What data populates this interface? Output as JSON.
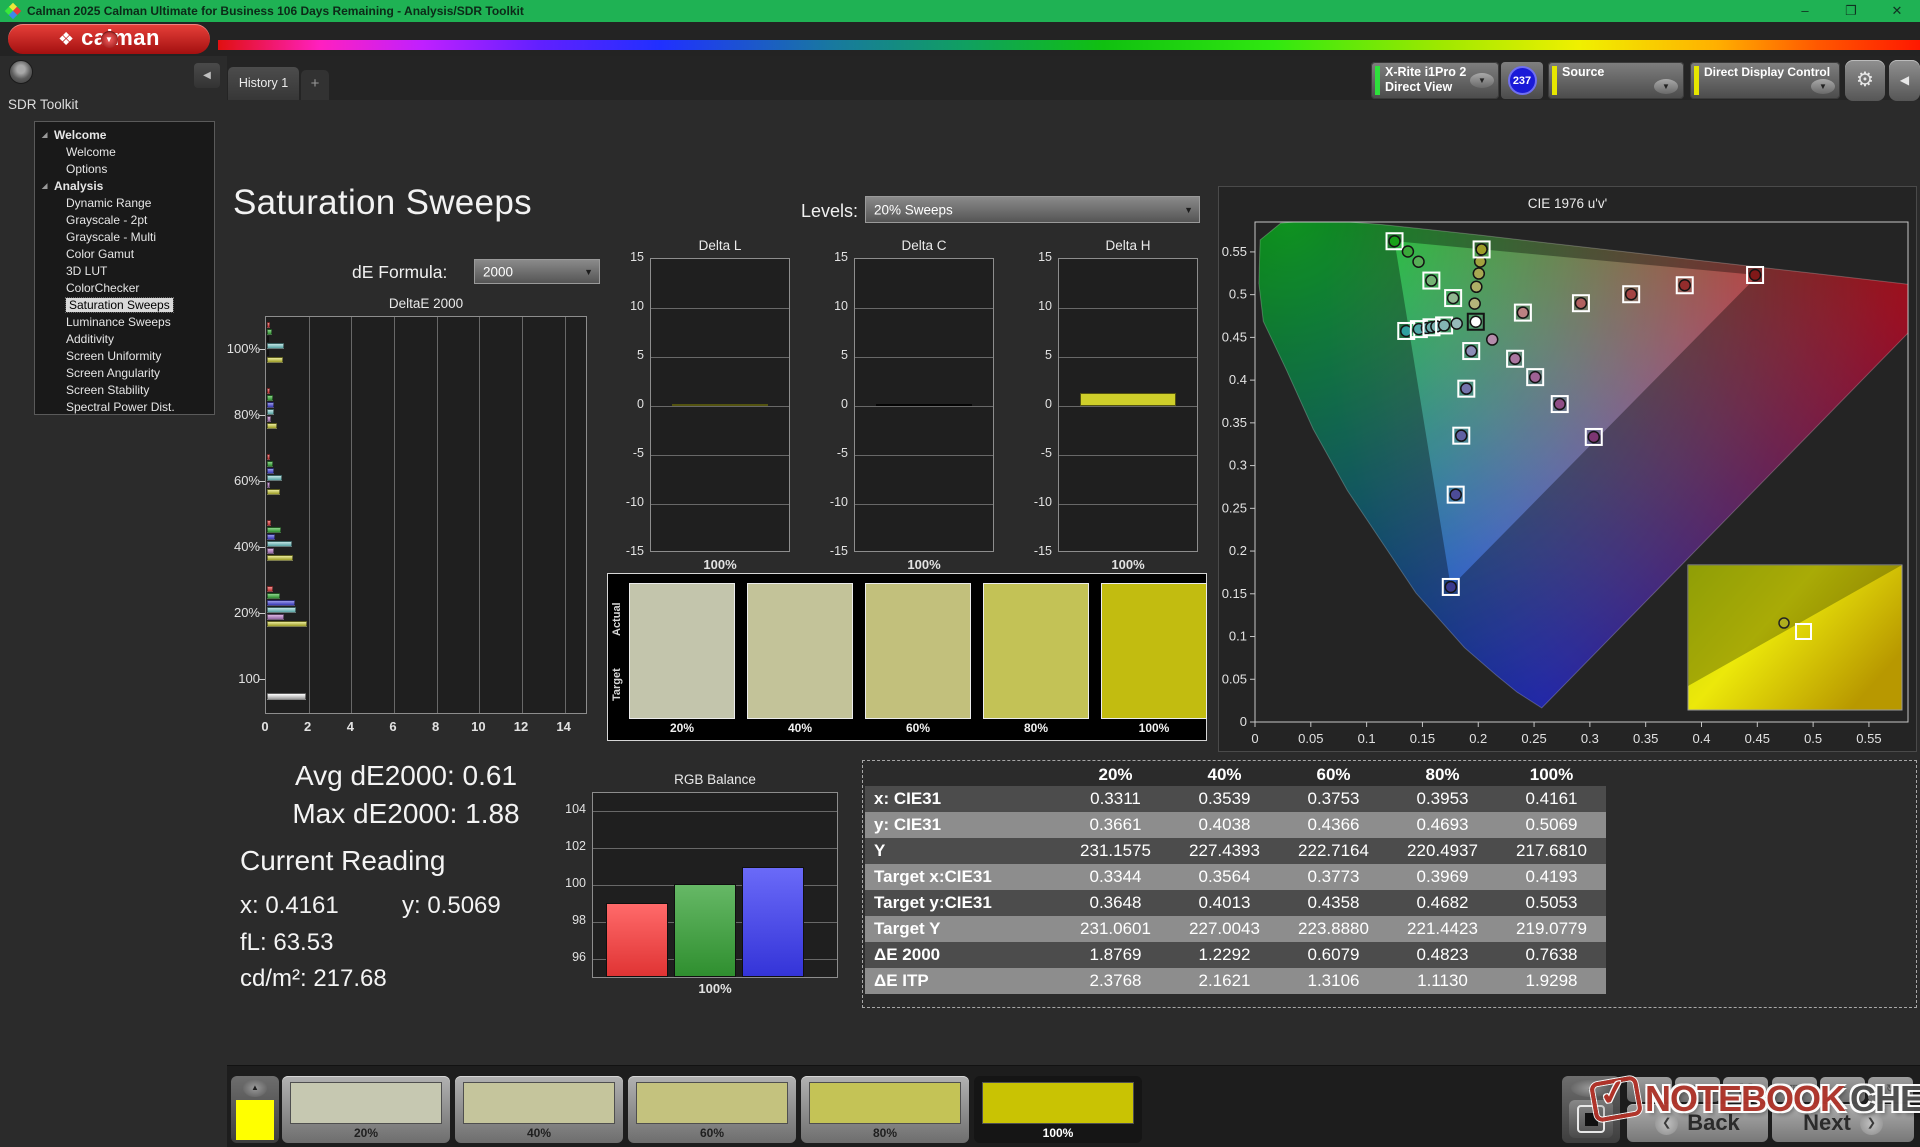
{
  "window": {
    "title": "Calman 2025 Calman Ultimate for Business 106 Days Remaining  - Analysis/SDR Toolkit",
    "minimize": "–",
    "restore": "❐",
    "close": "✕"
  },
  "brand": {
    "glyph": "❖",
    "name": "calman",
    "chev": "▼"
  },
  "tabs": {
    "history": "History 1",
    "add": "+"
  },
  "toolbar": {
    "meter_line1": "X-Rite i1Pro 2",
    "meter_line2": "Direct View",
    "badge": "237",
    "source": "Source",
    "display_control": "Direct Display Control",
    "gear_icon": "⚙",
    "collapse_icon": "◀",
    "chev": "▼"
  },
  "sidebar": {
    "header": "SDR Toolkit",
    "expander": "◢",
    "collapse_icon": "◀",
    "items": [
      {
        "label": "Welcome",
        "type": "hdr"
      },
      {
        "label": "Welcome",
        "type": "itm"
      },
      {
        "label": "Options",
        "type": "itm"
      },
      {
        "label": "Analysis",
        "type": "hdr"
      },
      {
        "label": "Dynamic Range",
        "type": "itm"
      },
      {
        "label": "Grayscale - 2pt",
        "type": "itm"
      },
      {
        "label": "Grayscale - Multi",
        "type": "itm"
      },
      {
        "label": "Color Gamut",
        "type": "itm"
      },
      {
        "label": "3D LUT",
        "type": "itm"
      },
      {
        "label": "ColorChecker",
        "type": "itm"
      },
      {
        "label": "Saturation Sweeps",
        "type": "itm",
        "selected": true
      },
      {
        "label": "Luminance Sweeps",
        "type": "itm"
      },
      {
        "label": "Additivity",
        "type": "itm"
      },
      {
        "label": "Screen Uniformity",
        "type": "itm"
      },
      {
        "label": "Screen Angularity",
        "type": "itm"
      },
      {
        "label": "Screen Stability",
        "type": "itm"
      },
      {
        "label": "Spectral Power Dist.",
        "type": "itm"
      }
    ]
  },
  "page": {
    "title": "Saturation Sweeps",
    "levels_label": "Levels:",
    "levels_value": "20% Sweeps",
    "de_formula_label": "dE Formula:",
    "de_formula_value": "2000",
    "avg": "Avg dE2000: 0.61",
    "max": "Max dE2000: 1.88",
    "current_reading": "Current Reading",
    "x": "x: 0.4161",
    "y": "y: 0.5069",
    "fl": "fL: 63.53",
    "cdm2": "cd/m²: 217.68"
  },
  "chart_data": {
    "deltae": {
      "type": "bar",
      "title": "DeltaE 2000",
      "orientation": "horizontal",
      "xlim": [
        0,
        15
      ],
      "x_ticks": [
        "0",
        "2",
        "4",
        "6",
        "8",
        "10",
        "12",
        "14"
      ],
      "groups": [
        "100%",
        "80%",
        "60%",
        "40%",
        "20%",
        "100"
      ],
      "series": [
        "red",
        "green",
        "blue",
        "cyan",
        "magenta",
        "yellow"
      ],
      "values": [
        [
          0.15,
          0.22,
          0.08,
          0.8,
          0.08,
          0.7638
        ],
        [
          0.12,
          0.28,
          0.33,
          0.33,
          0.2,
          0.4823
        ],
        [
          0.15,
          0.28,
          0.33,
          0.7,
          0.15,
          0.6079
        ],
        [
          0.2,
          0.65,
          0.38,
          1.15,
          0.33,
          1.2292
        ],
        [
          0.3,
          0.6,
          1.3,
          1.35,
          0.78,
          1.8769
        ]
      ],
      "white_value": 1.85
    },
    "lch": {
      "type": "bar",
      "titles": [
        "Delta L",
        "Delta C",
        "Delta H"
      ],
      "ylim": [
        -15,
        15
      ],
      "y_ticks": [
        "15",
        "10",
        "5",
        "0",
        "-5",
        "-10",
        "-15"
      ],
      "x_label": "100%",
      "values": [
        0.12,
        0.05,
        1.3
      ],
      "colors": [
        "#cfcf2a",
        "#0a0a0a",
        "#cfcf2a"
      ]
    },
    "rgb": {
      "type": "bar",
      "title": "RGB Balance",
      "ylim": [
        95,
        105
      ],
      "y_ticks": [
        "104",
        "102",
        "100",
        "98",
        "96"
      ],
      "x_label": "100%",
      "categories": [
        "red",
        "green",
        "blue"
      ],
      "values": [
        99.0,
        100.05,
        101.0
      ]
    },
    "cie": {
      "type": "scatter",
      "title": "CIE 1976 u'v'",
      "lim": 0.585,
      "ticks": [
        "0",
        "0.05",
        "0.1",
        "0.15",
        "0.2",
        "0.25",
        "0.3",
        "0.35",
        "0.4",
        "0.45",
        "0.5",
        "0.55"
      ],
      "markers": [
        [
          0.1355,
          0.4575,
          "t",
          "#2f9f9f"
        ],
        [
          0.1468,
          0.4597,
          "t",
          "#4fa8a8"
        ],
        [
          0.154,
          0.461,
          "m",
          "#60acac"
        ],
        [
          0.1581,
          0.4618,
          "t",
          "#6eaeae"
        ],
        [
          0.1625,
          0.4627,
          "m",
          "#78b0b0"
        ],
        [
          0.1694,
          0.464,
          "t",
          "#84b4b4"
        ],
        [
          0.1807,
          0.4661,
          "m",
          "#96baba"
        ],
        [
          0.125,
          0.5625,
          "t",
          "#18a018"
        ],
        [
          0.137,
          0.5505,
          "m",
          "#3aa83a"
        ],
        [
          0.1465,
          0.5385,
          "m",
          "#57ad57"
        ],
        [
          0.158,
          0.5165,
          "t",
          "#74b274"
        ],
        [
          0.1775,
          0.496,
          "t",
          "#90b690"
        ],
        [
          0.1968,
          0.4895,
          "m",
          "#b4b47a"
        ],
        [
          0.1983,
          0.5092,
          "m",
          "#aeae66"
        ],
        [
          0.2005,
          0.5247,
          "m",
          "#a8a852"
        ],
        [
          0.2017,
          0.5387,
          "m",
          "#a2a23e"
        ],
        [
          0.203,
          0.5529,
          "t",
          "#9c9c2a"
        ],
        [
          0.24,
          0.479,
          "t",
          "#bc8282"
        ],
        [
          0.292,
          0.49,
          "t",
          "#b16060"
        ],
        [
          0.337,
          0.5005,
          "t",
          "#a34444"
        ],
        [
          0.385,
          0.511,
          "t",
          "#932c2c"
        ],
        [
          0.448,
          0.523,
          "t",
          "#801818"
        ],
        [
          0.2125,
          0.4475,
          "m",
          "#b48cab"
        ],
        [
          0.233,
          0.425,
          "t",
          "#aa76a0"
        ],
        [
          0.251,
          0.4035,
          "t",
          "#9e6294"
        ],
        [
          0.273,
          0.372,
          "t",
          "#8f4d85"
        ],
        [
          0.3035,
          0.3335,
          "t",
          "#7d3672"
        ],
        [
          0.1937,
          0.434,
          "t",
          "#8c8cb6"
        ],
        [
          0.1893,
          0.39,
          "t",
          "#7474ac"
        ],
        [
          0.1848,
          0.335,
          "t",
          "#6060a2"
        ],
        [
          0.1798,
          0.266,
          "t",
          "#4c4c98"
        ],
        [
          0.1754,
          0.158,
          "t",
          "#3a3a8e"
        ],
        [
          0.1978,
          0.4683,
          "wp",
          "#ffffff"
        ]
      ]
    },
    "table": {
      "type": "table",
      "headers": [
        "",
        "20%",
        "40%",
        "60%",
        "80%",
        "100%"
      ],
      "rows": [
        {
          "label": "x: CIE31",
          "values": [
            "0.3311",
            "0.3539",
            "0.3753",
            "0.3953",
            "0.4161"
          ]
        },
        {
          "label": "y: CIE31",
          "values": [
            "0.3661",
            "0.4038",
            "0.4366",
            "0.4693",
            "0.5069"
          ]
        },
        {
          "label": "Y",
          "values": [
            "231.1575",
            "227.4393",
            "222.7164",
            "220.4937",
            "217.6810"
          ]
        },
        {
          "label": "Target x:CIE31",
          "values": [
            "0.3344",
            "0.3564",
            "0.3773",
            "0.3969",
            "0.4193"
          ]
        },
        {
          "label": "Target y:CIE31",
          "values": [
            "0.3648",
            "0.4013",
            "0.4358",
            "0.4682",
            "0.5053"
          ]
        },
        {
          "label": "Target Y",
          "values": [
            "231.0601",
            "227.0043",
            "223.8880",
            "221.4423",
            "219.0779"
          ]
        },
        {
          "label": "ΔE 2000",
          "values": [
            "1.8769",
            "1.2292",
            "0.6079",
            "0.4823",
            "0.7638"
          ]
        },
        {
          "label": "ΔE ITP",
          "values": [
            "2.3768",
            "2.1621",
            "1.3106",
            "1.1130",
            "1.9298"
          ]
        }
      ]
    }
  },
  "swatches": {
    "row_labels": [
      "Actual",
      "Target"
    ],
    "labels": [
      "20%",
      "40%",
      "60%",
      "80%",
      "100%"
    ],
    "colors": [
      "#c3c5ac",
      "#c3c399",
      "#c2c07c",
      "#c3c256",
      "#c2bc10"
    ]
  },
  "bottom": {
    "up_icon": "▲",
    "stop_icon": "■",
    "patch_color": "#ffff00",
    "swatches": [
      {
        "label": "20%",
        "color": "#c6c8b1"
      },
      {
        "label": "40%",
        "color": "#c5c59c"
      },
      {
        "label": "60%",
        "color": "#c4c27e"
      },
      {
        "label": "80%",
        "color": "#c4c356"
      },
      {
        "label": "100%",
        "color": "#c9c303",
        "selected": true
      }
    ],
    "nav_icons": [
      "●",
      "▶",
      "❚❚",
      "▥",
      "∞",
      "↻"
    ],
    "back_icon": "❮",
    "back": "Back",
    "next": "Next",
    "next_icon": "❯"
  },
  "watermark": {
    "logo": "✓",
    "part1": "NOTEBOOK",
    "part2": "CHECK"
  },
  "colors": {
    "titlebar": "#1fb254",
    "accent_red": "#cf1e26",
    "meter_stripe": "#2ee03c",
    "source_stripe": "#e6e600",
    "badge_blue": "#1a1ad8",
    "selected_item_bg": "#d9d9d9"
  }
}
